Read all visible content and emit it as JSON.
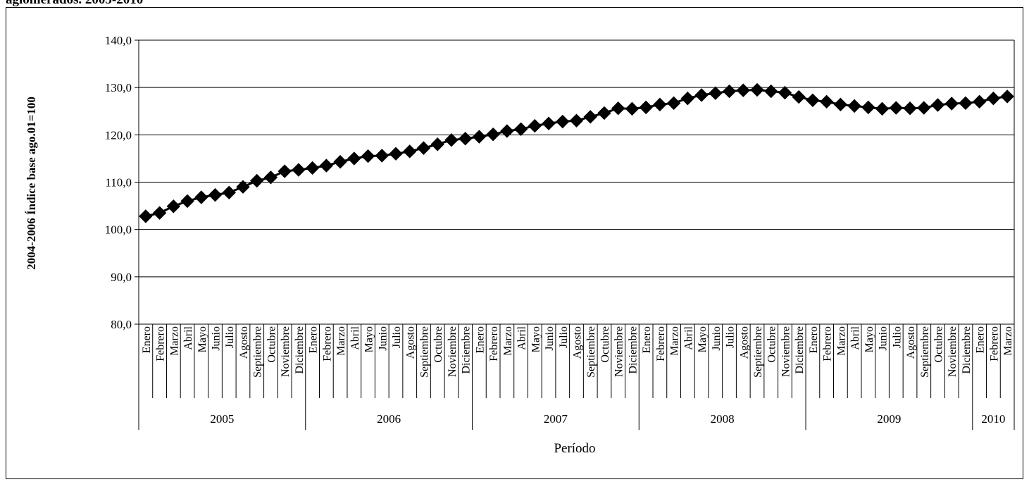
{
  "page": {
    "title": "aglomerados. 2005-2010"
  },
  "chart_data": {
    "type": "line",
    "title": "",
    "xlabel": "Período",
    "ylabel": "2004-2006 Índice base ago.01=100",
    "ylim": [
      80,
      140
    ],
    "yticks": [
      "80,0",
      "90,0",
      "100,0",
      "110,0",
      "120,0",
      "130,0",
      "140,0"
    ],
    "grid": true,
    "legend": "none",
    "marker": "diamond",
    "line_color": "#000000",
    "years": [
      {
        "label": "2005",
        "months": 12
      },
      {
        "label": "2006",
        "months": 12
      },
      {
        "label": "2007",
        "months": 12
      },
      {
        "label": "2008",
        "months": 12
      },
      {
        "label": "2009",
        "months": 12
      },
      {
        "label": "2010",
        "months": 3
      }
    ],
    "categories": [
      "Enero",
      "Febrero",
      "Marzo",
      "Abril",
      "Mayo",
      "Junio",
      "Julio",
      "Agosto",
      "Septiembre",
      "Octubre",
      "Noviembre",
      "Diciembre",
      "Enero",
      "Febrero",
      "Marzo",
      "Abril",
      "Mayo",
      "Junio",
      "Julio",
      "Agosto",
      "Septiembre",
      "Octubre",
      "Noviembre",
      "Diciembre",
      "Enero",
      "Febrero",
      "Marzo",
      "Abril",
      "Mayo",
      "Junio",
      "Julio",
      "Agosto",
      "Septiembre",
      "Octubre",
      "Noviembre",
      "Diciembre",
      "Enero",
      "Febrero",
      "Marzo",
      "Abril",
      "Mayo",
      "Junio",
      "Julio",
      "Agosto",
      "Septiembre",
      "Octubre",
      "Noviembre",
      "Diciembre",
      "Enero",
      "Febrero",
      "Marzo",
      "Abril",
      "Mayo",
      "Junio",
      "Julio",
      "Agosto",
      "Septiembre",
      "Octubre",
      "Noviembre",
      "Diciembre",
      "Enero",
      "Febrero",
      "Marzo"
    ],
    "values": [
      102.8,
      103.5,
      104.9,
      106.0,
      106.8,
      107.3,
      107.8,
      109.0,
      110.3,
      111.0,
      112.3,
      112.6,
      113.0,
      113.5,
      114.3,
      115.0,
      115.5,
      115.6,
      116.0,
      116.5,
      117.2,
      118.0,
      118.9,
      119.2,
      119.6,
      120.1,
      120.8,
      121.2,
      121.9,
      122.4,
      122.8,
      123.0,
      123.8,
      124.6,
      125.6,
      125.5,
      125.8,
      126.4,
      126.7,
      127.7,
      128.4,
      128.8,
      129.2,
      129.4,
      129.5,
      129.2,
      128.9,
      128.0,
      127.3,
      127.0,
      126.4,
      126.1,
      125.8,
      125.5,
      125.7,
      125.6,
      125.7,
      126.3,
      126.6,
      126.7,
      127.0,
      127.7,
      128.1
    ]
  }
}
